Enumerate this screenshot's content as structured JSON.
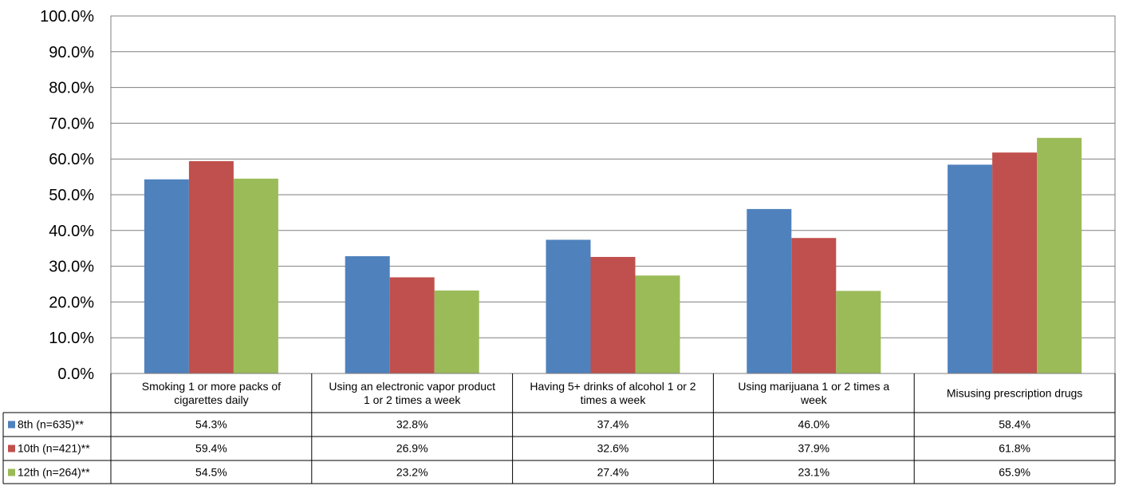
{
  "chart_data": {
    "type": "bar",
    "categories": [
      "Smoking 1 or more packs of cigarettes daily",
      "Using an electronic vapor product 1 or 2 times a week",
      "Having 5+ drinks of alcohol 1 or 2 times a week",
      "Using marijuana 1 or 2 times a week",
      "Misusing prescription drugs"
    ],
    "series": [
      {
        "name": "8th (n=635)**",
        "color": "#4F81BD",
        "values": [
          54.3,
          32.8,
          37.4,
          46.0,
          58.4
        ],
        "labels": [
          "54.3%",
          "32.8%",
          "37.4%",
          "46.0%",
          "58.4%"
        ]
      },
      {
        "name": "10th (n=421)**",
        "color": "#C0504D",
        "values": [
          59.4,
          26.9,
          32.6,
          37.9,
          61.8
        ],
        "labels": [
          "59.4%",
          "26.9%",
          "32.6%",
          "37.9%",
          "61.8%"
        ]
      },
      {
        "name": "12th (n=264)**",
        "color": "#9BBB59",
        "values": [
          54.5,
          23.2,
          27.4,
          23.1,
          65.9
        ],
        "labels": [
          "54.5%",
          "23.2%",
          "27.4%",
          "23.1%",
          "65.9%"
        ]
      }
    ],
    "y_ticks": [
      "0.0%",
      "10.0%",
      "20.0%",
      "30.0%",
      "40.0%",
      "50.0%",
      "60.0%",
      "70.0%",
      "80.0%",
      "90.0%",
      "100.0%"
    ],
    "ylim": [
      0,
      100
    ],
    "grid": true,
    "legend": "data-table-below"
  }
}
